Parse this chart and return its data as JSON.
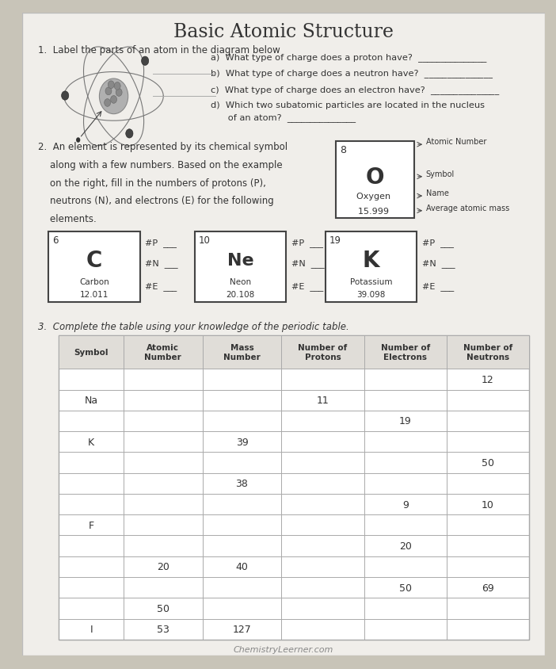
{
  "title": "Basic Atomic Structure",
  "bg_color": "#c8c4b8",
  "paper_color": "#f0eeea",
  "title_fs": 20,
  "section1_header": "1.  Label the parts of an atom in the diagram below",
  "q_a": "a)  What type of charge does a proton have?  _______________",
  "q_b": "b)  What type of charge does a neutron have?  _______________",
  "q_c": "c)  What type of charge does an electron have?  _______________",
  "q_d1": "d)  Which two subatomic particles are located in the nucleus",
  "q_d2": "      of an atom?  _______________",
  "section2_header1": "2.  An element is represented by its chemical symbol",
  "section2_header2": "    along with a few numbers. Based on the example",
  "section2_header3": "    on the right, fill in the numbers of protons (P),",
  "section2_header4": "    neutrons (N), and electrons (E) for the following",
  "section2_header5": "    elements.",
  "example": {
    "atomic_number": "8",
    "symbol": "O",
    "name": "Oxygen",
    "mass": "15.999"
  },
  "example_labels": [
    "Atomic Number",
    "Symbol",
    "Name",
    "Average atomic mass"
  ],
  "elements": [
    {
      "num": "6",
      "sym": "C",
      "name": "Carbon",
      "mass": "12.011"
    },
    {
      "num": "10",
      "sym": "Ne",
      "name": "Neon",
      "mass": "20.108"
    },
    {
      "num": "19",
      "sym": "K",
      "name": "Potassium",
      "mass": "39.098"
    }
  ],
  "section3_header": "3.  Complete the table using your knowledge of the periodic table.",
  "table_headers": [
    "Symbol",
    "Atomic\nNumber",
    "Mass\nNumber",
    "Number of\nProtons",
    "Number of\nElectrons",
    "Number of\nNeutrons"
  ],
  "table_data": [
    [
      "",
      "",
      "",
      "",
      "",
      "12"
    ],
    [
      "Na",
      "",
      "",
      "11",
      "",
      ""
    ],
    [
      "",
      "",
      "",
      "",
      "19",
      ""
    ],
    [
      "K",
      "",
      "39",
      "",
      "",
      ""
    ],
    [
      "",
      "",
      "",
      "",
      "",
      "50"
    ],
    [
      "",
      "",
      "38",
      "",
      "",
      ""
    ],
    [
      "",
      "",
      "",
      "",
      "9",
      "10"
    ],
    [
      "F",
      "",
      "",
      "",
      "",
      ""
    ],
    [
      "",
      "",
      "",
      "",
      "20",
      ""
    ],
    [
      "",
      "20",
      "40",
      "",
      "",
      ""
    ],
    [
      "",
      "",
      "",
      "",
      "50",
      "69"
    ],
    [
      "",
      "50",
      "",
      "",
      "",
      ""
    ],
    [
      "I",
      "53",
      "127",
      "",
      "",
      ""
    ]
  ],
  "footer": "ChemistryLeerner.com",
  "line_color": "#aaaaaa",
  "text_dark": "#333333",
  "text_med": "#555555"
}
